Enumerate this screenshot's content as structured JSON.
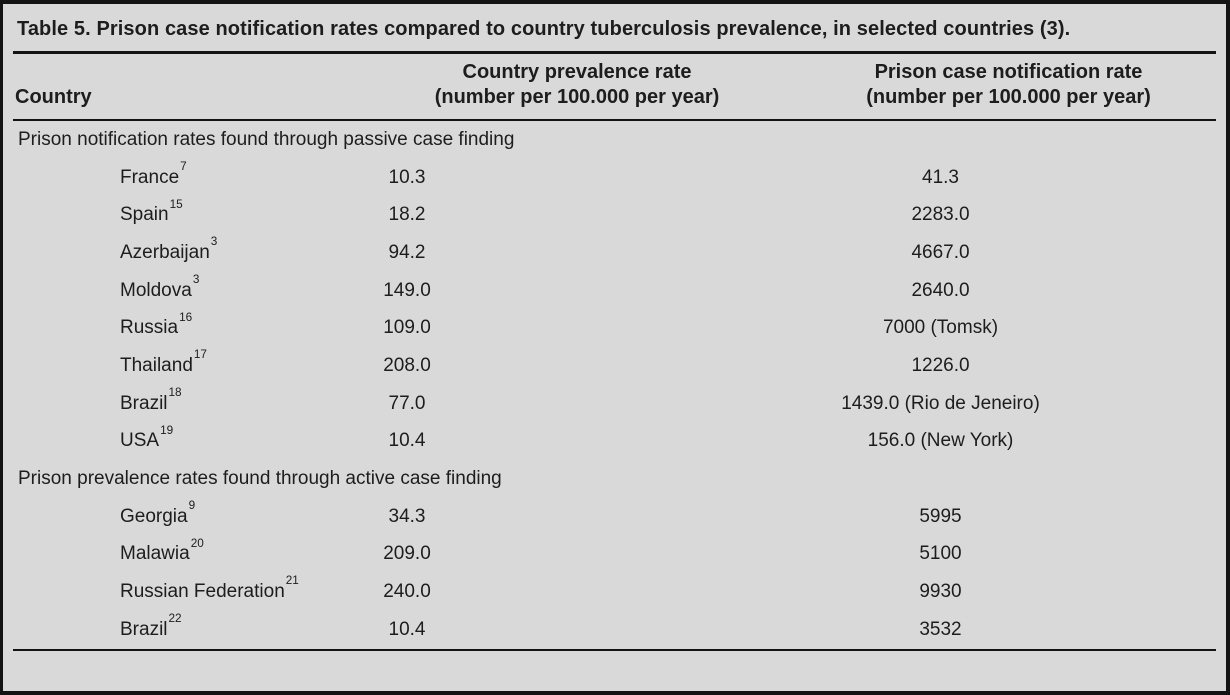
{
  "table": {
    "title": "Table 5. Prison case notification rates compared to country tuberculosis prevalence, in selected countries (3).",
    "columns": {
      "country": "Country",
      "prevalence_line1": "Country prevalence rate",
      "prevalence_line2": "(number per 100.000 per year)",
      "notification_line1": "Prison case notification rate",
      "notification_line2": "(number per 100.000 per year)"
    },
    "sections": [
      {
        "header": "Prison notification rates found through passive case finding",
        "rows": [
          {
            "country": "France",
            "ref": "7",
            "prevalence": "10.3",
            "notification": "41.3"
          },
          {
            "country": "Spain",
            "ref": "15",
            "prevalence": "18.2",
            "notification": "2283.0"
          },
          {
            "country": "Azerbaijan",
            "ref": "3",
            "prevalence": "94.2",
            "notification": "4667.0"
          },
          {
            "country": "Moldova",
            "ref": "3",
            "prevalence": "149.0",
            "notification": "2640.0"
          },
          {
            "country": "Russia",
            "ref": "16",
            "prevalence": "109.0",
            "notification": "7000 (Tomsk)"
          },
          {
            "country": "Thailand",
            "ref": "17",
            "prevalence": "208.0",
            "notification": "1226.0"
          },
          {
            "country": "Brazil",
            "ref": "18",
            "prevalence": "77.0",
            "notification": "1439.0 (Rio de Jeneiro)"
          },
          {
            "country": "USA",
            "ref": "19",
            "prevalence": "10.4",
            "notification": "156.0 (New York)"
          }
        ]
      },
      {
        "header": "Prison prevalence rates found through active case finding",
        "rows": [
          {
            "country": "Georgia",
            "ref": "9",
            "prevalence": "34.3",
            "notification": "5995"
          },
          {
            "country": "Malawia",
            "ref": "20",
            "prevalence": "209.0",
            "notification": "5100"
          },
          {
            "country": "Russian Federation",
            "ref": "21",
            "prevalence": "240.0",
            "notification": "9930"
          },
          {
            "country": "Brazil",
            "ref": "22",
            "prevalence": "10.4",
            "notification": "3532"
          }
        ]
      }
    ]
  },
  "colors": {
    "background": "#d9d9d9",
    "text": "#1d1d1d",
    "rule": "#131313"
  }
}
